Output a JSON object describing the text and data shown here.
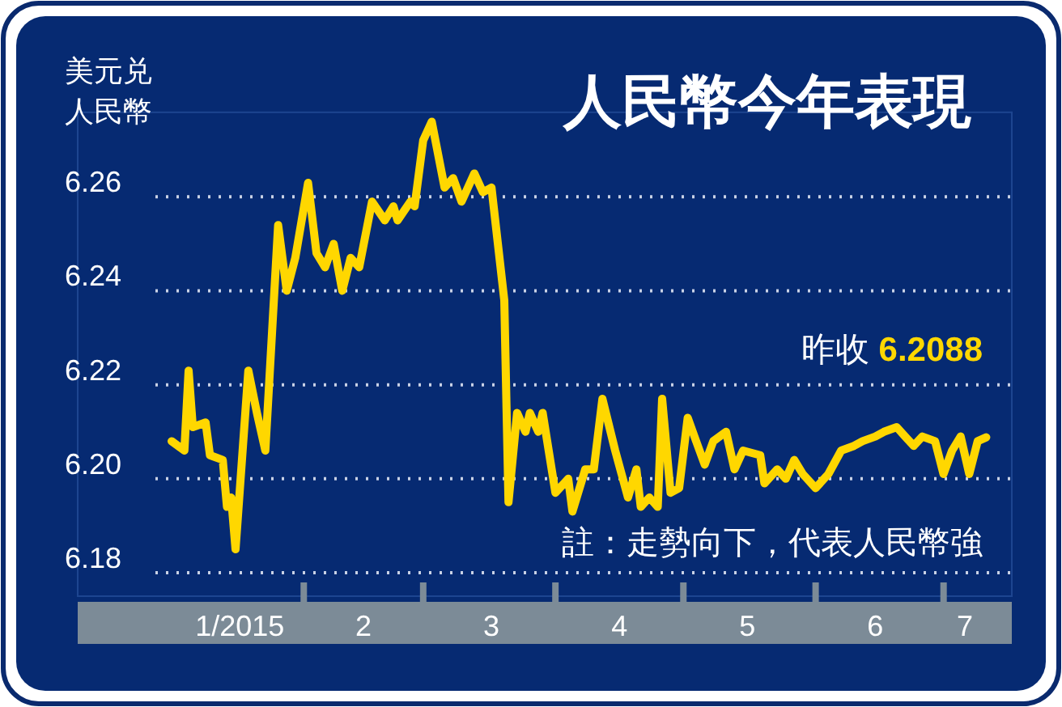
{
  "chart_data": {
    "type": "line",
    "title": "人民幣今年表現",
    "ylabel": "美元兑人民幣",
    "annotations": [
      "昨收 6.2088",
      "註：走勢向下，代表人民幣強"
    ],
    "x": [
      "2015-01-01",
      "2015-01-04",
      "2015-01-05",
      "2015-01-06",
      "2015-01-09",
      "2015-01-10",
      "2015-01-13",
      "2015-01-14",
      "2015-01-15",
      "2015-01-16",
      "2015-01-19",
      "2015-01-21",
      "2015-01-23",
      "2015-01-26",
      "2015-01-28",
      "2015-01-30",
      "2015-02-02",
      "2015-02-04",
      "2015-02-06",
      "2015-02-08",
      "2015-02-10",
      "2015-02-12",
      "2015-02-14",
      "2015-02-17",
      "2015-02-20",
      "2015-02-22",
      "2015-02-23",
      "2015-02-26",
      "2015-02-27",
      "2015-03-01",
      "2015-03-03",
      "2015-03-06",
      "2015-03-08",
      "2015-03-10",
      "2015-03-13",
      "2015-03-15",
      "2015-03-17",
      "2015-03-20",
      "2015-03-21",
      "2015-03-23",
      "2015-03-25",
      "2015-03-26",
      "2015-03-28",
      "2015-03-29",
      "2015-04-01",
      "2015-04-04",
      "2015-04-05",
      "2015-04-08",
      "2015-04-10",
      "2015-04-12",
      "2015-04-15",
      "2015-04-18",
      "2015-04-20",
      "2015-04-21",
      "2015-04-23",
      "2015-04-25",
      "2015-04-26",
      "2015-04-28",
      "2015-04-30",
      "2015-05-02",
      "2015-05-04",
      "2015-05-06",
      "2015-05-08",
      "2015-05-11",
      "2015-05-13",
      "2015-05-15",
      "2015-05-19",
      "2015-05-20",
      "2015-05-23",
      "2015-05-25",
      "2015-05-27",
      "2015-05-29",
      "2015-06-01",
      "2015-06-04",
      "2015-06-07",
      "2015-06-10",
      "2015-06-12",
      "2015-06-15",
      "2015-06-17",
      "2015-06-20",
      "2015-06-22",
      "2015-06-24",
      "2015-06-26",
      "2015-06-29",
      "2015-07-01",
      "2015-07-03",
      "2015-07-05",
      "2015-07-07",
      "2015-07-09",
      "2015-07-11"
    ],
    "series": [
      {
        "color": "#ffd700",
        "values": [
          6.208,
          6.206,
          6.223,
          6.211,
          6.212,
          6.205,
          6.204,
          6.194,
          6.196,
          6.185,
          6.223,
          6.214,
          6.206,
          6.254,
          6.24,
          6.247,
          6.263,
          6.248,
          6.245,
          6.25,
          6.24,
          6.247,
          6.245,
          6.259,
          6.255,
          6.258,
          6.255,
          6.259,
          6.258,
          6.272,
          6.276,
          6.262,
          6.264,
          6.259,
          6.265,
          6.261,
          6.262,
          6.238,
          6.195,
          6.214,
          6.21,
          6.214,
          6.21,
          6.214,
          6.197,
          6.2,
          6.193,
          6.202,
          6.202,
          6.217,
          6.206,
          6.196,
          6.202,
          6.194,
          6.196,
          6.194,
          6.217,
          6.197,
          6.198,
          6.213,
          6.208,
          6.203,
          6.208,
          6.21,
          6.202,
          6.206,
          6.205,
          6.199,
          6.202,
          6.2,
          6.204,
          6.201,
          6.198,
          6.201,
          6.206,
          6.207,
          6.208,
          6.209,
          6.21,
          6.211,
          6.209,
          6.207,
          6.209,
          6.208,
          6.201,
          6.206,
          6.209,
          6.201,
          6.208,
          6.2088
        ]
      }
    ],
    "xlim": [
      "2014-12-10",
      "2015-07-17"
    ],
    "xticks": [
      {
        "value": "2015-01-17",
        "label": "1/2015"
      },
      {
        "value": "2015-02-15",
        "label": "2"
      },
      {
        "value": "2015-03-17",
        "label": "3"
      },
      {
        "value": "2015-04-16",
        "label": "4"
      },
      {
        "value": "2015-05-16",
        "label": "5"
      },
      {
        "value": "2015-06-15",
        "label": "6"
      },
      {
        "value": "2015-07-06",
        "label": "7"
      },
      {
        "value": "2015-02-01",
        "label": null
      },
      {
        "value": "2015-03-01",
        "label": null
      },
      {
        "value": "2015-04-01",
        "label": null
      },
      {
        "value": "2015-05-01",
        "label": null
      },
      {
        "value": "2015-06-01",
        "label": null
      },
      {
        "value": "2015-07-01",
        "label": null
      }
    ],
    "ylim": [
      6.175,
      6.278
    ],
    "yticks": [
      {
        "value": 6.18,
        "label": "6.18"
      },
      {
        "value": 6.2,
        "label": "6.20"
      },
      {
        "value": 6.22,
        "label": "6.22"
      },
      {
        "value": 6.24,
        "label": "6.24"
      },
      {
        "value": 6.26,
        "label": "6.26"
      }
    ],
    "grid": "y",
    "marker": "none",
    "line_style": "solid"
  }
}
